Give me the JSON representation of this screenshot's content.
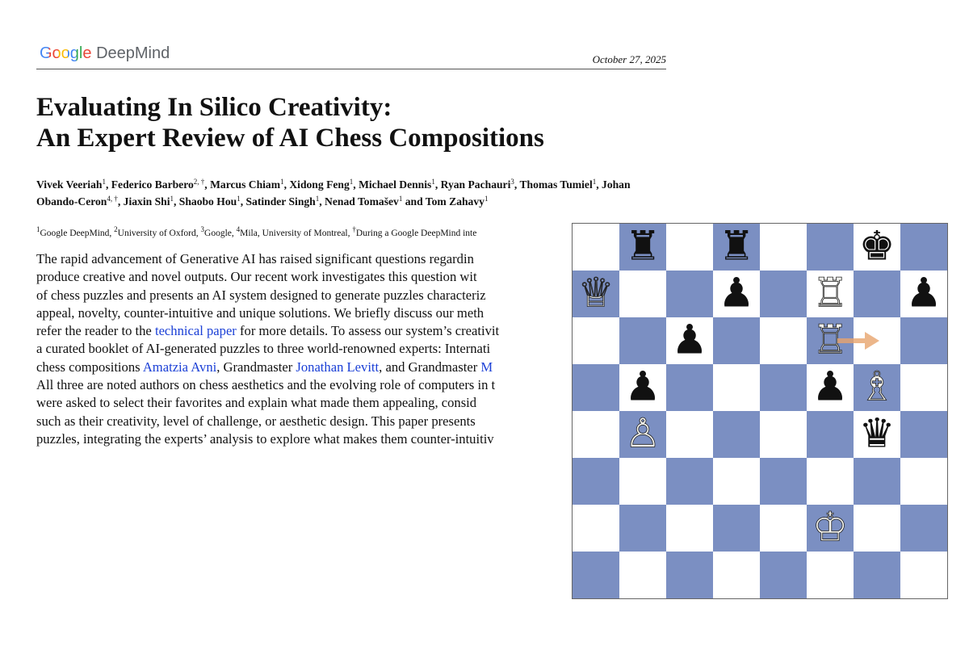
{
  "header": {
    "logo": {
      "google": "Google",
      "deepmind": "DeepMind"
    },
    "date": "October 27, 2025"
  },
  "title": [
    "Evaluating In Silico Creativity:",
    "An Expert Review of AI Chess Compositions"
  ],
  "authors": [
    {
      "name": "Vivek Veeriah",
      "sup": "1",
      "sep": ", "
    },
    {
      "name": "Federico Barbero",
      "sup": "2, †",
      "sep": ", "
    },
    {
      "name": "Marcus Chiam",
      "sup": "1",
      "sep": ", "
    },
    {
      "name": "Xidong Feng",
      "sup": "1",
      "sep": ", "
    },
    {
      "name": "Michael Dennis",
      "sup": "1",
      "sep": ", "
    },
    {
      "name": "Ryan Pachauri",
      "sup": "3",
      "sep": ", "
    },
    {
      "name": "Thomas Tumiel",
      "sup": "1",
      "sep": ", "
    },
    {
      "name": "Johan Obando-Ceron",
      "sup": "4, †",
      "sep": ", "
    },
    {
      "name": "Jiaxin Shi",
      "sup": "1",
      "sep": ", "
    },
    {
      "name": "Shaobo Hou",
      "sup": "1",
      "sep": ", "
    },
    {
      "name": "Satinder Singh",
      "sup": "1",
      "sep": ", "
    },
    {
      "name": "Nenad Tomašev",
      "sup": "1",
      "sep": " and "
    },
    {
      "name": "Tom Zahavy",
      "sup": "1"
    }
  ],
  "affiliations": [
    {
      "sup": "1",
      "text": "Google DeepMind, "
    },
    {
      "sup": "2",
      "text": "University of Oxford, "
    },
    {
      "sup": "3",
      "text": "Google, "
    },
    {
      "sup": "4",
      "text": "Mila, University of Montreal, "
    },
    {
      "sup": "†",
      "text": "During a Google DeepMind inte"
    }
  ],
  "abstract": [
    [
      {
        "text": "The rapid advancement of Generative AI has raised significant questions regardin"
      }
    ],
    [
      {
        "text": "produce creative and novel outputs. Our recent work investigates this question wit"
      }
    ],
    [
      {
        "text": "of chess puzzles and presents an AI system designed to generate puzzles characteriz"
      }
    ],
    [
      {
        "text": "appeal, novelty, counter-intuitive and unique solutions. We briefly discuss our meth"
      }
    ],
    [
      {
        "text": "refer the reader to the "
      },
      {
        "text": "technical paper",
        "link": true
      },
      {
        "text": " for more details. To assess our system’s creativit"
      }
    ],
    [
      {
        "text": "a curated booklet of AI-generated puzzles to three world-renowned experts: Internati"
      }
    ],
    [
      {
        "text": "chess compositions "
      },
      {
        "text": "Amatzia Avni",
        "link": true
      },
      {
        "text": ", Grandmaster "
      },
      {
        "text": "Jonathan Levitt",
        "link": true
      },
      {
        "text": ", and Grandmaster "
      },
      {
        "text": "M",
        "link": true
      }
    ],
    [
      {
        "text": "All three are noted authors on chess aesthetics and the evolving role of computers in t"
      }
    ],
    [
      {
        "text": "were asked to select their favorites and explain what made them appealing, consid"
      }
    ],
    [
      {
        "text": "such as their creativity, level of challenge, or aesthetic design. This paper presents"
      }
    ],
    [
      {
        "text": "puzzles, integrating the experts’ analysis to explore what makes them counter-intuitiv"
      }
    ]
  ],
  "board": [
    [
      null,
      "♜",
      null,
      "♜",
      null,
      null,
      "♚",
      null
    ],
    [
      "♕",
      null,
      null,
      "♟",
      null,
      "♖",
      null,
      "♟"
    ],
    [
      null,
      null,
      "♟",
      null,
      null,
      "♖",
      null,
      null
    ],
    [
      null,
      "♟",
      null,
      null,
      null,
      "♟",
      "♗",
      null
    ],
    [
      null,
      "♙",
      null,
      null,
      null,
      null,
      "♛",
      null
    ],
    [
      null,
      null,
      null,
      null,
      null,
      null,
      null,
      null
    ],
    [
      null,
      null,
      null,
      null,
      null,
      "♔",
      null,
      null
    ],
    [
      null,
      null,
      null,
      null,
      null,
      null,
      null,
      null
    ]
  ]
}
